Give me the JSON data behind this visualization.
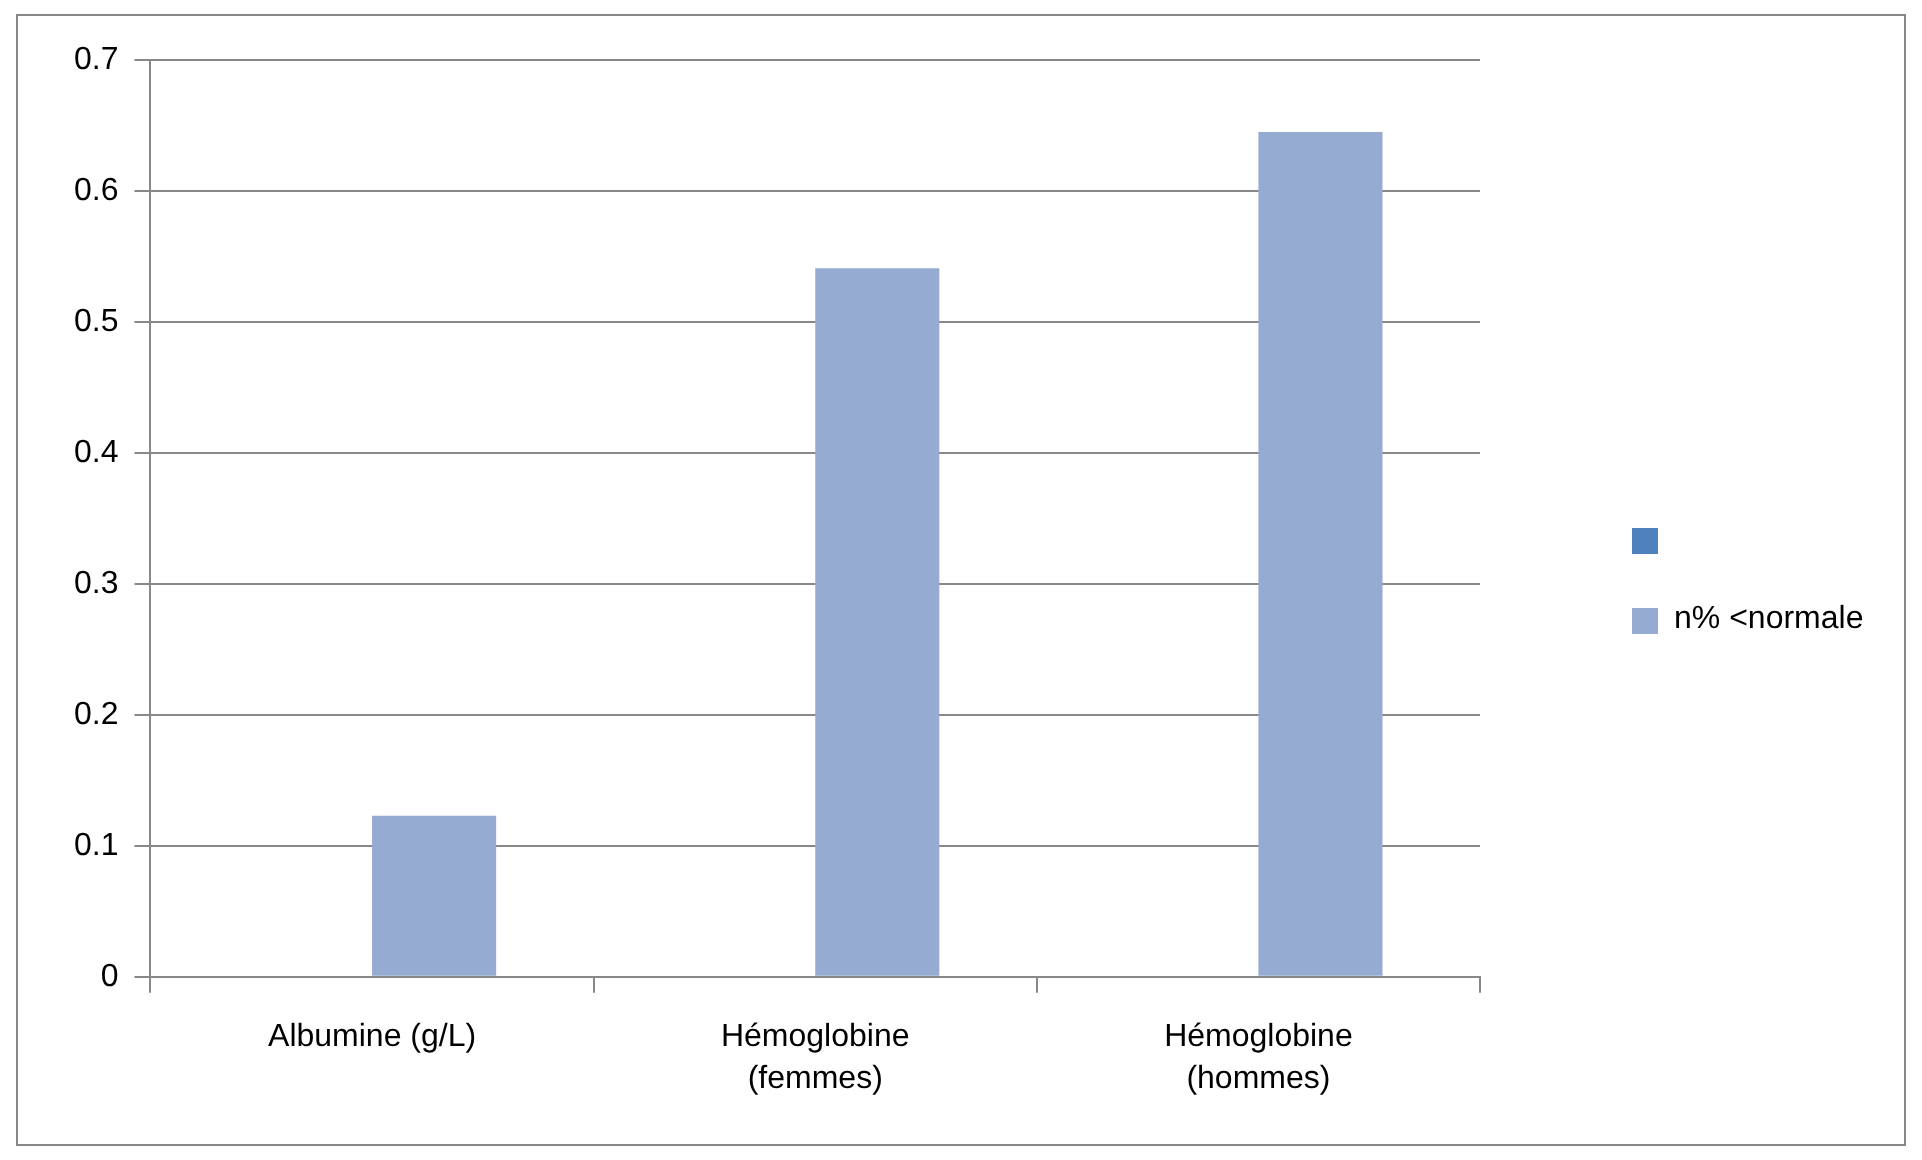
{
  "chart_data": {
    "type": "bar",
    "categories": [
      "Albumine (g/L)",
      "Hémoglobine (femmes)",
      "Hémoglobine (hommes)"
    ],
    "series": [
      {
        "color": "#4f81bd",
        "values": [
          null,
          null,
          null
        ]
      },
      {
        "name": "n% <normale",
        "color": "#95abd1",
        "values": [
          0.123,
          0.541,
          0.645
        ]
      }
    ],
    "ylim": [
      0,
      0.7
    ],
    "yticks": [
      0,
      0.1,
      0.2,
      0.3,
      0.4,
      0.5,
      0.6,
      0.7
    ],
    "grid": "y",
    "legend": "right"
  }
}
